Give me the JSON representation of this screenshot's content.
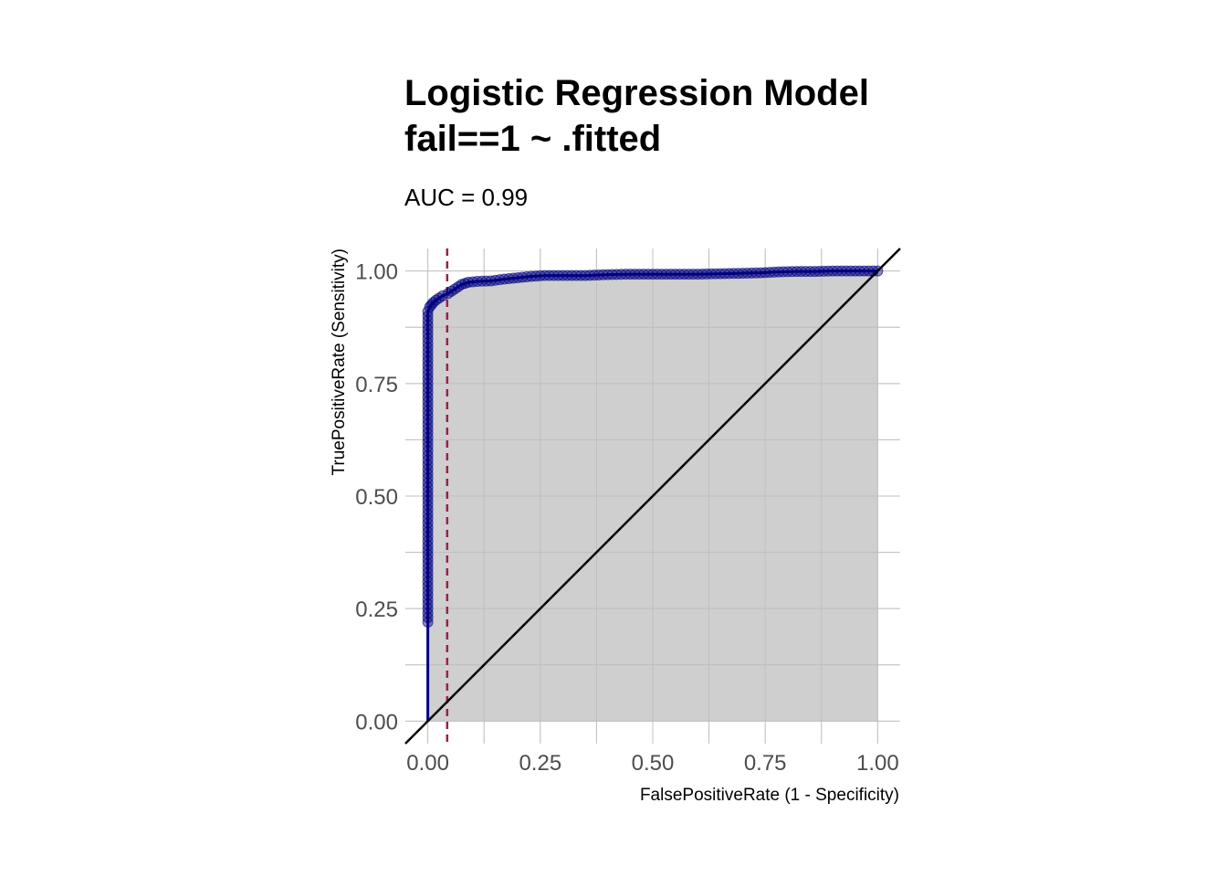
{
  "chart_data": {
    "type": "line",
    "title_line1": "Logistic Regression Model",
    "title_line2": "fail==1 ~ .fitted",
    "subtitle": "AUC = 0.99",
    "xlabel": "FalsePositiveRate (1 - Specificity)",
    "ylabel": "TruePositiveRate (Sensitivity)",
    "xlim": [
      -0.05,
      1.05
    ],
    "ylim": [
      -0.05,
      1.05
    ],
    "x_ticks": [
      "0.00",
      "0.25",
      "0.50",
      "0.75",
      "1.00"
    ],
    "y_ticks": [
      "0.00",
      "0.25",
      "0.50",
      "0.75",
      "1.00"
    ],
    "grid": true,
    "threshold_fpr": 0.043,
    "roc_curve": {
      "x": [
        0,
        0,
        0,
        0,
        0,
        0,
        0,
        0,
        0,
        0,
        0,
        0,
        0.004,
        0.008,
        0.012,
        0.018,
        0.025,
        0.033,
        0.045,
        0.06,
        0.075,
        0.09,
        0.11,
        0.14,
        0.17,
        0.2,
        0.23,
        0.26,
        0.3,
        0.35,
        0.4,
        0.45,
        0.5,
        0.55,
        0.6,
        0.65,
        0.7,
        0.74,
        0.78,
        0.82,
        0.86,
        0.9,
        0.94,
        0.97,
        1.0
      ],
      "y": [
        0,
        0.22,
        0.3,
        0.4,
        0.5,
        0.6,
        0.7,
        0.8,
        0.85,
        0.88,
        0.9,
        0.91,
        0.92,
        0.925,
        0.93,
        0.935,
        0.94,
        0.945,
        0.95,
        0.96,
        0.97,
        0.975,
        0.977,
        0.978,
        0.982,
        0.985,
        0.988,
        0.99,
        0.99,
        0.99,
        0.992,
        0.993,
        0.993,
        0.993,
        0.993,
        0.994,
        0.995,
        0.996,
        0.998,
        0.999,
        0.999,
        1.0,
        1.0,
        1.0,
        1.0
      ]
    },
    "colors": {
      "curve": "#000080",
      "threshold": "#9c1f4f",
      "area_fill": "#cccccc",
      "diagonal": "#000000",
      "grid": "#cfcfcf"
    }
  }
}
